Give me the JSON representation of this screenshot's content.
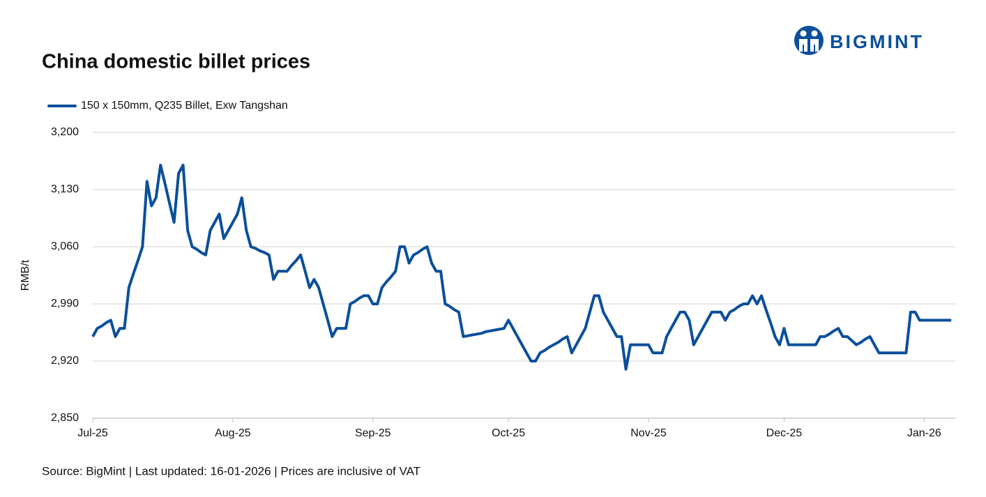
{
  "chart_data": {
    "type": "line",
    "title": "China domestic billet prices",
    "logo": "BIGMINT",
    "y_label": "RMB/t",
    "footer": "Source: BigMint | Last updated: 16-01-2026 | Prices are inclusive of VAT",
    "grid": true,
    "legend": "top-left",
    "ylim": [
      2850,
      3200
    ],
    "yticks": [
      {
        "value": 2850,
        "label": "2,850"
      },
      {
        "value": 2920,
        "label": "2,920"
      },
      {
        "value": 2990,
        "label": "2,990"
      },
      {
        "value": 3060,
        "label": "3,060"
      },
      {
        "value": 3130,
        "label": "3,130"
      },
      {
        "value": 3200,
        "label": "3,200"
      }
    ],
    "categories": [
      "Jul-25",
      null,
      null,
      null,
      null,
      null,
      null,
      null,
      null,
      null,
      null,
      null,
      null,
      null,
      null,
      null,
      null,
      null,
      null,
      null,
      null,
      null,
      null,
      null,
      null,
      null,
      null,
      null,
      null,
      null,
      null,
      "Aug-25",
      null,
      null,
      null,
      null,
      null,
      null,
      null,
      null,
      null,
      null,
      null,
      null,
      null,
      null,
      null,
      null,
      null,
      null,
      null,
      null,
      null,
      null,
      null,
      null,
      null,
      null,
      null,
      null,
      null,
      null,
      "Sep-25",
      null,
      null,
      null,
      null,
      null,
      null,
      null,
      null,
      null,
      null,
      null,
      null,
      null,
      null,
      null,
      null,
      null,
      null,
      null,
      null,
      null,
      null,
      null,
      null,
      null,
      null,
      null,
      null,
      null,
      "Oct-25",
      null,
      null,
      null,
      null,
      null,
      null,
      null,
      null,
      null,
      null,
      null,
      null,
      null,
      null,
      null,
      null,
      null,
      null,
      null,
      null,
      null,
      null,
      null,
      null,
      null,
      null,
      null,
      null,
      null,
      null,
      "Nov-25",
      null,
      null,
      null,
      null,
      null,
      null,
      null,
      null,
      null,
      null,
      null,
      null,
      null,
      null,
      null,
      null,
      null,
      null,
      null,
      null,
      null,
      null,
      null,
      null,
      null,
      null,
      null,
      null,
      null,
      "Dec-25",
      null,
      null,
      null,
      null,
      null,
      null,
      null,
      null,
      null,
      null,
      null,
      null,
      null,
      null,
      null,
      null,
      null,
      null,
      null,
      null,
      null,
      null,
      null,
      null,
      null,
      null,
      null,
      null,
      null,
      null,
      "Jan-26",
      null,
      null,
      null,
      null,
      null,
      null
    ],
    "series": [
      {
        "name": "150 x 150mm, Q235 Billet, Exw Tangshan",
        "color": "#0b4f9c",
        "values": [
          2950,
          2960,
          2963,
          2967,
          2970,
          2950,
          2960,
          2960,
          3010,
          3027,
          3043,
          3060,
          3140,
          3110,
          3120,
          3160,
          3137,
          3113,
          3090,
          3150,
          3160,
          3080,
          3060,
          3057,
          3053,
          3050,
          3080,
          3090,
          3100,
          3070,
          3080,
          3090,
          3100,
          3120,
          3080,
          3060,
          3058,
          3055,
          3053,
          3050,
          3020,
          3030,
          3030,
          3030,
          3037,
          3043,
          3050,
          3030,
          3010,
          3020,
          3010,
          2990,
          2970,
          2950,
          2960,
          2960,
          2960,
          2990,
          2993,
          2997,
          3000,
          3000,
          2990,
          2990,
          3010,
          3017,
          3023,
          3030,
          3060,
          3060,
          3040,
          3050,
          3053,
          3057,
          3060,
          3040,
          3030,
          3030,
          2990,
          2987,
          2983,
          2980,
          2950,
          2951,
          2952,
          2953,
          2954,
          2956,
          2957,
          2958,
          2959,
          2960,
          2970,
          2960,
          2950,
          2940,
          2930,
          2920,
          2920,
          2930,
          2933,
          2937,
          2940,
          2943,
          2947,
          2950,
          2930,
          2940,
          2950,
          2960,
          2980,
          3000,
          3000,
          2980,
          2970,
          2960,
          2950,
          2950,
          2910,
          2940,
          2940,
          2940,
          2940,
          2940,
          2930,
          2930,
          2930,
          2950,
          2960,
          2970,
          2980,
          2980,
          2970,
          2940,
          2950,
          2960,
          2970,
          2980,
          2980,
          2980,
          2970,
          2980,
          2983,
          2987,
          2990,
          2990,
          3000,
          2990,
          3000,
          2983,
          2967,
          2950,
          2940,
          2960,
          2940,
          2940,
          2940,
          2940,
          2940,
          2940,
          2940,
          2950,
          2950,
          2953,
          2957,
          2960,
          2950,
          2950,
          2945,
          2940,
          2943,
          2947,
          2950,
          2940,
          2930,
          2930,
          2930,
          2930,
          2930,
          2930,
          2930,
          2980,
          2980,
          2970,
          2970,
          2970,
          2970,
          2970,
          2970,
          2970,
          2970
        ]
      }
    ]
  }
}
